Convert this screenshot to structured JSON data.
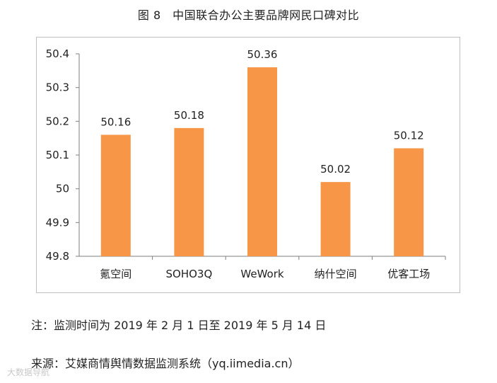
{
  "title": "图 8　中国联合办公主要品牌网民口碑对比",
  "note": "注：监测时间为 2019 年 2 月 1 日至 2019 年 5 月 14 日",
  "source": "来源：艾媒商情舆情数据监测系统（yq.iimedia.cn）",
  "watermark": "大数据导航",
  "colors": {
    "bar": "#F79646",
    "axis": "#7f7f7f",
    "frame": "#bfbfbf"
  },
  "chart_data": {
    "type": "bar",
    "title": "图 8　中国联合办公主要品牌网民口碑对比",
    "categories": [
      "氪空间",
      "SOHO3Q",
      "WeWork",
      "纳什空间",
      "优客工场"
    ],
    "values": [
      50.16,
      50.18,
      50.36,
      50.02,
      50.12
    ],
    "data_labels": [
      "50.16",
      "50.18",
      "50.36",
      "50.02",
      "50.12"
    ],
    "yticks": [
      "49.8",
      "49.9",
      "50",
      "50.1",
      "50.2",
      "50.3",
      "50.4"
    ],
    "ylim": [
      49.8,
      50.4
    ],
    "xlabel": "",
    "ylabel": "",
    "grid": false
  }
}
